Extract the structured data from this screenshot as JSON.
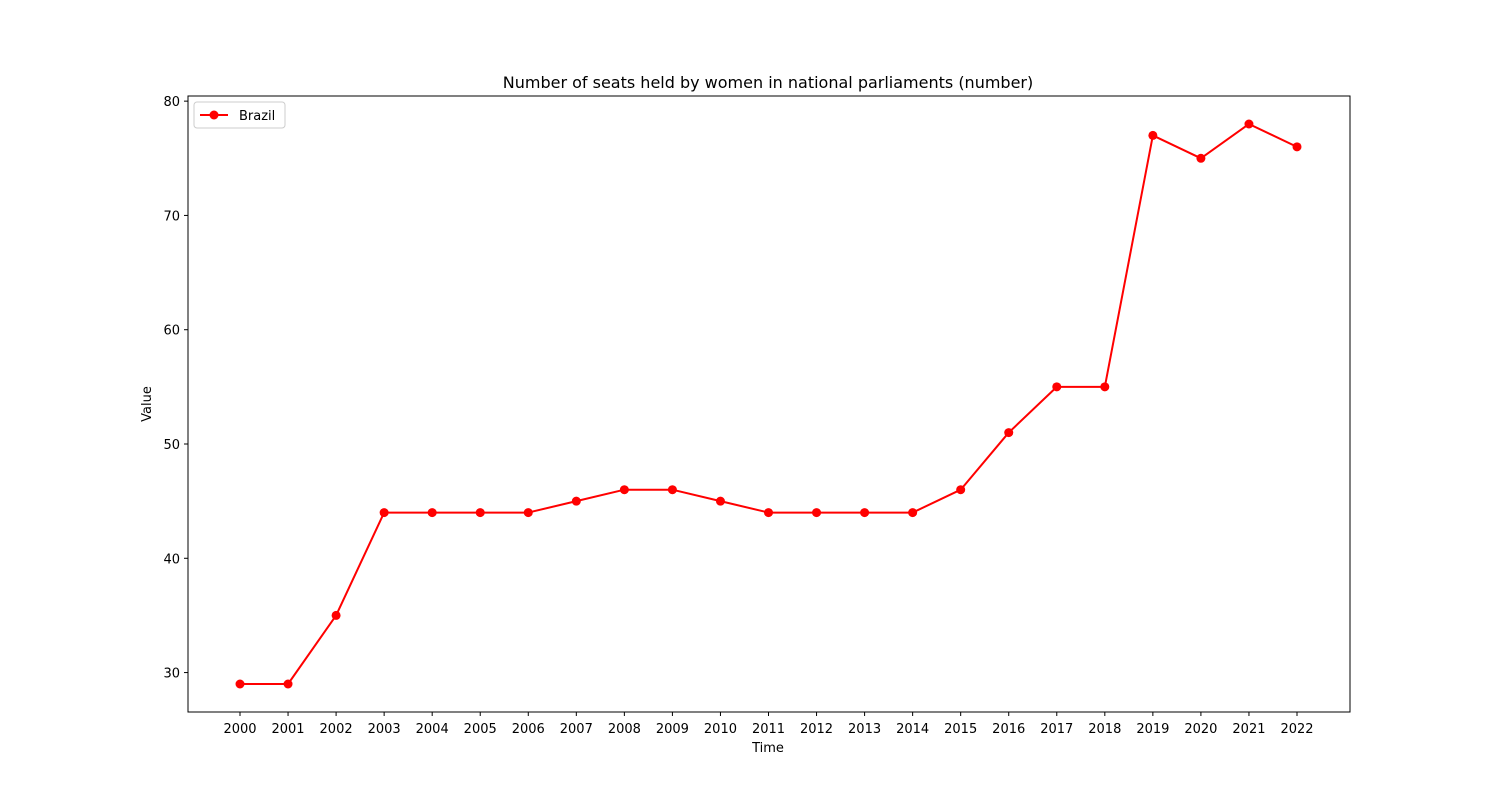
{
  "chart_data": {
    "type": "line",
    "title": "Number of seats held by women in national parliaments (number)",
    "xlabel": "Time",
    "ylabel": "Value",
    "x": [
      "2000",
      "2001",
      "2002",
      "2003",
      "2004",
      "2005",
      "2006",
      "2007",
      "2008",
      "2009",
      "2010",
      "2011",
      "2012",
      "2013",
      "2014",
      "2015",
      "2016",
      "2017",
      "2018",
      "2019",
      "2020",
      "2021",
      "2022"
    ],
    "series": [
      {
        "name": "Brazil",
        "color": "#ff0000",
        "marker": "circle",
        "values": [
          29,
          29,
          35,
          44,
          44,
          44,
          44,
          45,
          46,
          46,
          45,
          44,
          44,
          44,
          44,
          46,
          51,
          55,
          55,
          77,
          75,
          78,
          76
        ]
      }
    ],
    "yticks": [
      30,
      40,
      50,
      60,
      70,
      80
    ],
    "ylim": [
      26.55,
      80.45
    ],
    "grid": false,
    "legend_position": "upper-left"
  }
}
